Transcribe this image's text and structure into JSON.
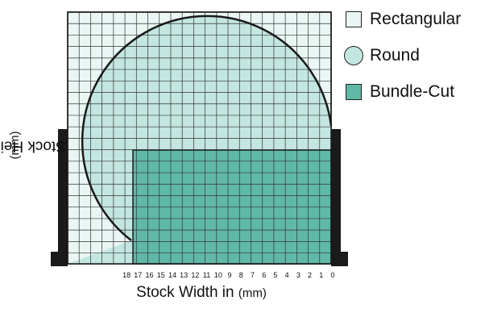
{
  "legend": [
    {
      "label": "Rectangular",
      "fill": "#eaf6f4",
      "shape": "square"
    },
    {
      "label": "Round",
      "fill": "#c3e6e1",
      "shape": "circle"
    },
    {
      "label": "Bundle-Cut",
      "fill": "#5fb9a6",
      "shape": "square"
    }
  ],
  "axes": {
    "ylabel": "Stock Height in",
    "ylabel_unit": "(mm)",
    "xlabel": "Stock Width in",
    "xlabel_unit": "(mm)",
    "x_ticks": [
      "18",
      "17",
      "16",
      "15",
      "14",
      "13",
      "12",
      "11",
      "10",
      "9",
      "8",
      "7",
      "6",
      "5",
      "4",
      "3",
      "2",
      "1",
      "0"
    ]
  },
  "colors": {
    "rectangular": "#eaf6f4",
    "round": "#c3e6e1",
    "bundle": "#5fb9a6",
    "grid": "#333333",
    "frame": "#1a1a1a"
  }
}
